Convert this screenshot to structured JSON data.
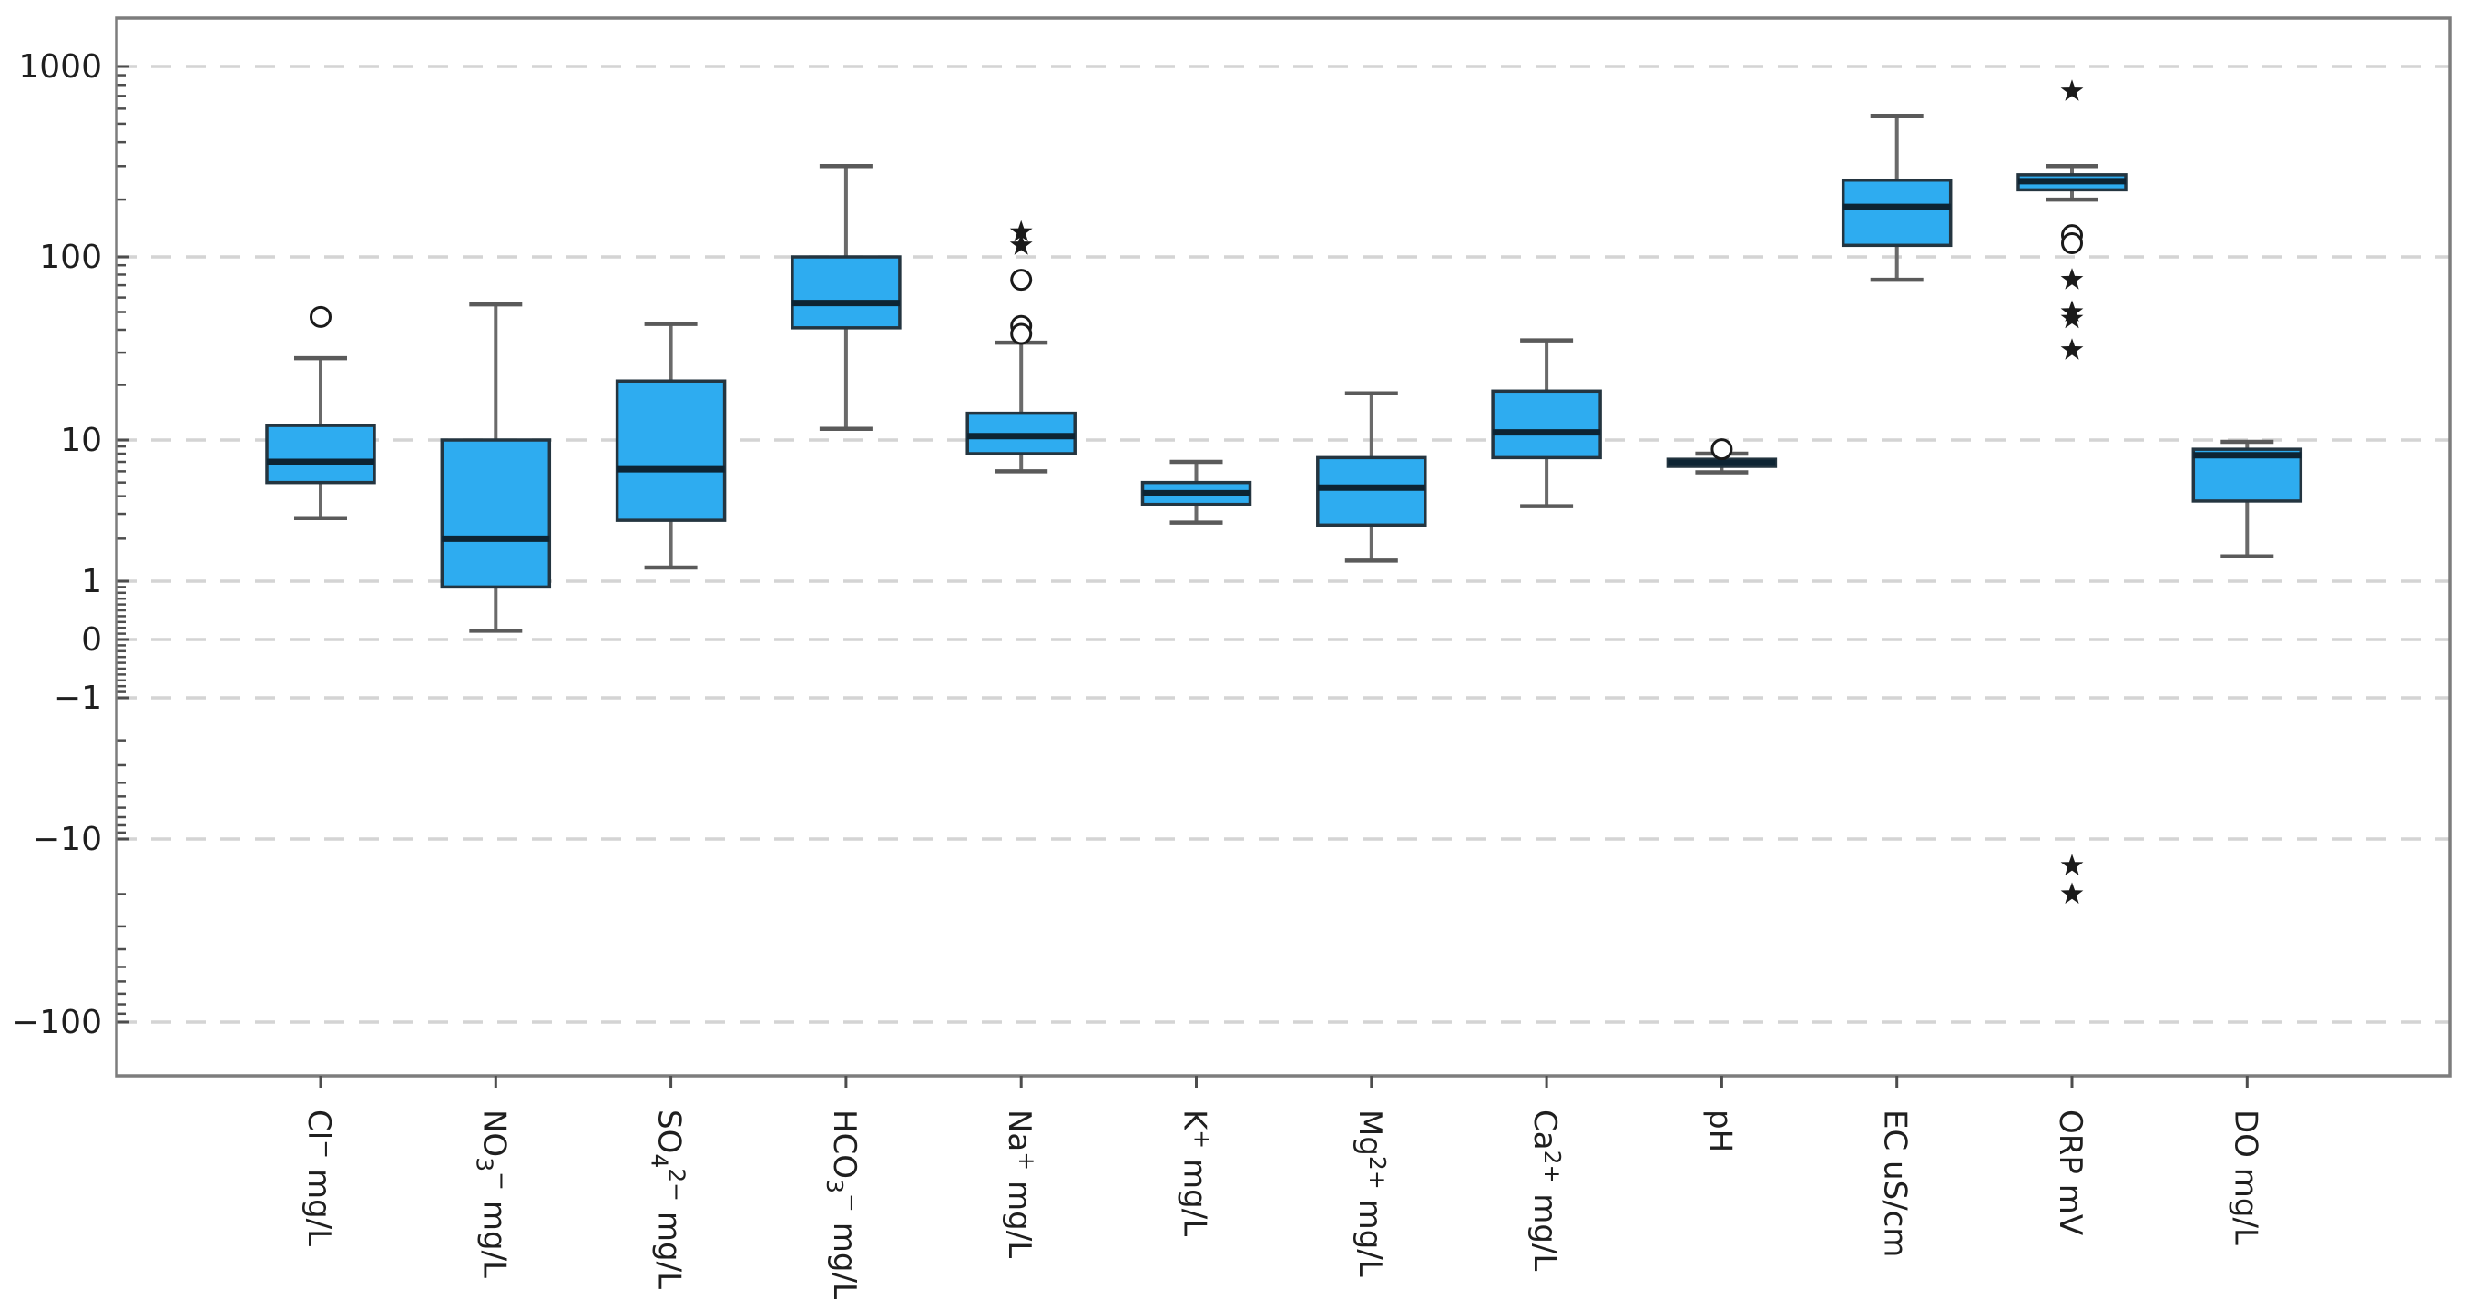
{
  "chart_data": {
    "type": "box",
    "title": "",
    "xlabel": "",
    "ylabel": "",
    "scale": "symlog",
    "grid": "dashed-horizontal",
    "legend": "none",
    "y_tick_labels": [
      "1000",
      "100",
      "10",
      "1",
      "0",
      "−1",
      "−10",
      "−100"
    ],
    "y_tick_values": [
      1000,
      100,
      10,
      1,
      0,
      -1,
      -10,
      -100
    ],
    "ylim_note": "symmetric log axis from above 1000 down to below -100 with linear zone between 1 and -1",
    "categories": [
      "Cl− mg/L",
      "NO3− mg/L",
      "SO42− mg/L",
      "HCO3− mg/L",
      "Na+ mg/L",
      "K+ mg/L",
      "Mg2+ mg/L",
      "Ca2+ mg/L",
      "pH",
      "EC uS/cm",
      "ORP mV",
      "DO mg/L"
    ],
    "series": [
      {
        "id": "cl",
        "label_tokens": [
          {
            "t": "Cl"
          },
          {
            "t": "−",
            "s": "sup"
          },
          {
            "t": " mg/L"
          }
        ],
        "whisker_low": 2.8,
        "q1": 5.0,
        "median": 7.0,
        "q3": 12.0,
        "whisker_high": 28,
        "outliers_circle": [
          47
        ],
        "outliers_star": []
      },
      {
        "id": "no3",
        "label_tokens": [
          {
            "t": "NO"
          },
          {
            "t": "3",
            "s": "sub"
          },
          {
            "t": "−",
            "s": "sup"
          },
          {
            "t": " mg/L"
          }
        ],
        "whisker_low": 0.15,
        "q1": 0.9,
        "median": 2.0,
        "q3": 10.0,
        "whisker_high": 55,
        "outliers_circle": [],
        "outliers_star": []
      },
      {
        "id": "so4",
        "label_tokens": [
          {
            "t": "SO"
          },
          {
            "t": "4",
            "s": "sub"
          },
          {
            "t": "2−",
            "s": "sup"
          },
          {
            "t": " mg/L"
          }
        ],
        "whisker_low": 1.25,
        "q1": 2.7,
        "median": 6.2,
        "q3": 21.0,
        "whisker_high": 43,
        "outliers_circle": [],
        "outliers_star": []
      },
      {
        "id": "hco3",
        "label_tokens": [
          {
            "t": "HCO"
          },
          {
            "t": "3",
            "s": "sub"
          },
          {
            "t": "−",
            "s": "sup"
          },
          {
            "t": " mg/L"
          }
        ],
        "whisker_low": 11.5,
        "q1": 41.0,
        "median": 56.0,
        "q3": 100.0,
        "whisker_high": 300,
        "outliers_circle": [],
        "outliers_star": []
      },
      {
        "id": "na",
        "label_tokens": [
          {
            "t": "Na"
          },
          {
            "t": "+",
            "s": "sup"
          },
          {
            "t": " mg/L"
          }
        ],
        "whisker_low": 6.0,
        "q1": 8.0,
        "median": 10.5,
        "q3": 14.0,
        "whisker_high": 34,
        "outliers_circle": [
          75,
          42,
          38
        ],
        "outliers_star": [
          135,
          115
        ]
      },
      {
        "id": "k",
        "label_tokens": [
          {
            "t": "K"
          },
          {
            "t": "+",
            "s": "sup"
          },
          {
            "t": " mg/L"
          }
        ],
        "whisker_low": 2.6,
        "q1": 3.5,
        "median": 4.2,
        "q3": 5.0,
        "whisker_high": 7.0,
        "outliers_circle": [],
        "outliers_star": []
      },
      {
        "id": "mg",
        "label_tokens": [
          {
            "t": "Mg"
          },
          {
            "t": "2+",
            "s": "sup"
          },
          {
            "t": " mg/L"
          }
        ],
        "whisker_low": 1.4,
        "q1": 2.5,
        "median": 4.6,
        "q3": 7.5,
        "whisker_high": 18,
        "outliers_circle": [],
        "outliers_star": []
      },
      {
        "id": "ca",
        "label_tokens": [
          {
            "t": "Ca"
          },
          {
            "t": "2+",
            "s": "sup"
          },
          {
            "t": " mg/L"
          }
        ],
        "whisker_low": 3.4,
        "q1": 7.5,
        "median": 11.0,
        "q3": 18.5,
        "whisker_high": 35,
        "outliers_circle": [],
        "outliers_star": []
      },
      {
        "id": "ph",
        "label_tokens": [
          {
            "t": "pH"
          }
        ],
        "whisker_low": 5.9,
        "q1": 6.5,
        "median": 6.9,
        "q3": 7.3,
        "whisker_high": 8.0,
        "outliers_circle": [
          8.6
        ],
        "outliers_star": []
      },
      {
        "id": "ec",
        "label_tokens": [
          {
            "t": "EC uS/cm"
          }
        ],
        "whisker_low": 75,
        "q1": 115,
        "median": 183,
        "q3": 253,
        "whisker_high": 550,
        "outliers_circle": [],
        "outliers_star": []
      },
      {
        "id": "orp",
        "label_tokens": [
          {
            "t": "ORP mV"
          }
        ],
        "whisker_low": 200,
        "q1": 225,
        "median": 250,
        "q3": 270,
        "whisker_high": 300,
        "outliers_circle": [
          130,
          118
        ],
        "outliers_star": [
          740,
          75,
          50,
          46,
          31,
          -14,
          -20
        ]
      },
      {
        "id": "do",
        "label_tokens": [
          {
            "t": "DO mg/L"
          }
        ],
        "whisker_low": 1.5,
        "q1": 3.7,
        "median": 7.8,
        "q3": 8.6,
        "whisker_high": 9.7,
        "outliers_circle": [],
        "outliers_star": []
      }
    ],
    "colors": {
      "box_fill": "#2EACF0",
      "box_border": "#243540",
      "median": "#0D2433",
      "whisker": "#6a6a6a",
      "whisker_cap": "#5a5a5a",
      "outlier": "#1a1a1a",
      "gridline": "#d4d4d4",
      "axis_border": "#7d7d7d",
      "tick": "#4d4d4d",
      "tick_label": "#1f1f1f",
      "background": "#ffffff"
    }
  }
}
